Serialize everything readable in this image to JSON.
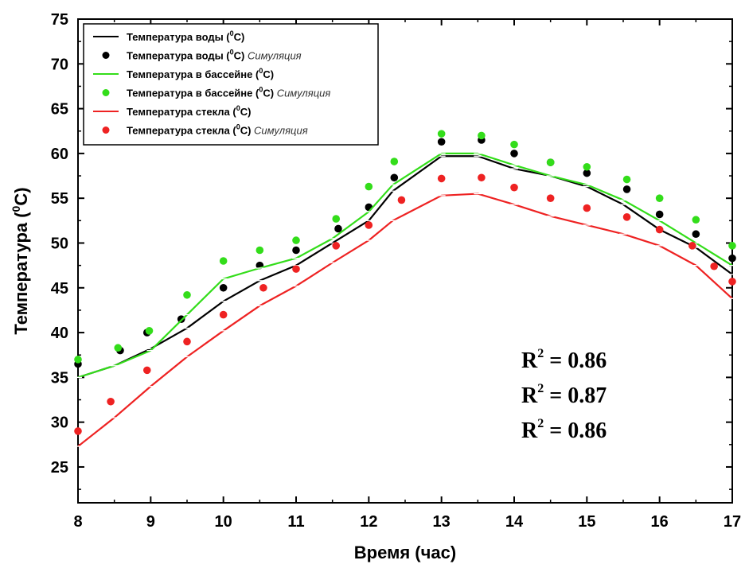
{
  "chart_data": {
    "type": "line",
    "xlabel": "Время (час)",
    "ylabel_main": "Температура (",
    "ylabel_sup": "0",
    "ylabel_end": "C)",
    "xlim": [
      8,
      17
    ],
    "ylim": [
      21,
      75
    ],
    "xticks": [
      8,
      9,
      10,
      11,
      12,
      13,
      14,
      15,
      16,
      17
    ],
    "yticks": [
      25,
      30,
      35,
      40,
      45,
      50,
      55,
      60,
      65,
      70,
      75
    ],
    "grid": false,
    "legend_position": "top-left",
    "series": [
      {
        "name": "Температура воды (0C)",
        "kind": "line",
        "color": "#000000",
        "x": [
          8,
          8.5,
          9,
          9.5,
          10,
          10.5,
          11,
          11.5,
          12,
          12.33,
          13,
          13.5,
          14,
          14.5,
          15,
          15.5,
          16,
          16.5,
          17
        ],
        "y": [
          35,
          36.3,
          38.2,
          40.5,
          43.5,
          45.8,
          47.5,
          50,
          52.5,
          55.8,
          59.7,
          59.7,
          58.3,
          57.5,
          56.3,
          54.3,
          51.5,
          49.5,
          46.5
        ]
      },
      {
        "name": "Температура воды (0C) Симуляция",
        "kind": "scatter",
        "color": "#000000",
        "x": [
          8,
          8.58,
          8.95,
          9.42,
          10,
          10.5,
          11,
          11.58,
          12,
          12.35,
          13,
          13.55,
          14,
          14.5,
          15,
          15.55,
          16,
          16.5,
          17
        ],
        "y": [
          36.5,
          38,
          40,
          41.5,
          45,
          47.5,
          49.2,
          51.6,
          54,
          57.3,
          61.3,
          61.5,
          60,
          59,
          57.8,
          56,
          53.2,
          51,
          48.3
        ]
      },
      {
        "name": "Температура в бассейне (0C)",
        "kind": "line",
        "color": "#33dd1a",
        "x": [
          8,
          8.5,
          9,
          9.5,
          10,
          10.5,
          11,
          11.5,
          12,
          12.33,
          13,
          13.5,
          14,
          14.5,
          15,
          15.5,
          16,
          16.5,
          17
        ],
        "y": [
          35,
          36.3,
          38,
          42,
          46,
          47.2,
          48.3,
          50.5,
          53.5,
          56.5,
          60,
          60,
          58.7,
          57.5,
          56.5,
          54.8,
          52.5,
          50,
          47.5
        ]
      },
      {
        "name": "Температура в бассейне (0C) Симуляция",
        "kind": "scatter",
        "color": "#33dd1a",
        "x": [
          8,
          8.55,
          8.98,
          9.5,
          10,
          10.5,
          11,
          11.55,
          12,
          12.35,
          13,
          13.55,
          14,
          14.5,
          15,
          15.55,
          16,
          16.5,
          17
        ],
        "y": [
          37,
          38.3,
          40.2,
          44.2,
          48,
          49.2,
          50.3,
          52.7,
          56.3,
          59.1,
          62.2,
          62,
          61,
          59,
          58.5,
          57.1,
          55,
          52.6,
          49.7
        ]
      },
      {
        "name": "Температура стекла (0C)",
        "kind": "line",
        "color": "#ee2222",
        "x": [
          8,
          8.5,
          9,
          9.5,
          10,
          10.5,
          11,
          11.5,
          12,
          12.33,
          13,
          13.5,
          14,
          14.5,
          15,
          15.5,
          16,
          16.5,
          17
        ],
        "y": [
          27.3,
          30.5,
          34,
          37.3,
          40.2,
          43,
          45.2,
          47.8,
          50.3,
          52.5,
          55.3,
          55.5,
          54.3,
          53,
          52,
          51,
          49.7,
          47.5,
          43.8
        ]
      },
      {
        "name": "Температура стекла (0C) Симуляция",
        "kind": "scatter",
        "color": "#ee2222",
        "x": [
          8,
          8.45,
          8.95,
          9.5,
          10,
          10.55,
          11,
          11.55,
          12,
          12.45,
          13,
          13.55,
          14,
          14.5,
          15,
          15.55,
          16,
          16.45,
          16.75,
          17
        ],
        "y": [
          29,
          32.3,
          35.8,
          39,
          42,
          45,
          47.1,
          49.7,
          52,
          54.8,
          57.2,
          57.3,
          56.2,
          55,
          53.9,
          52.9,
          51.5,
          49.7,
          47.4,
          45.7
        ]
      }
    ],
    "legend": [
      {
        "kind": "line",
        "color": "#000000",
        "text": "Температура воды (",
        "sup": "0",
        "end": "C)",
        "sim": ""
      },
      {
        "kind": "dot",
        "color": "#000000",
        "text": "Температура воды (",
        "sup": "0",
        "end": "C) ",
        "sim": "Симуляция"
      },
      {
        "kind": "line",
        "color": "#33dd1a",
        "text": "Температура в бассейне (",
        "sup": "0",
        "end": "C)",
        "sim": ""
      },
      {
        "kind": "dot",
        "color": "#33dd1a",
        "text": "Температура в бассейне (",
        "sup": "0",
        "end": "C) ",
        "sim": "Симуляция"
      },
      {
        "kind": "line",
        "color": "#ee2222",
        "text": "Температура стекла (",
        "sup": "0",
        "end": "C)",
        "sim": ""
      },
      {
        "kind": "dot",
        "color": "#ee2222",
        "text": "Температура стекла (",
        "sup": "0",
        "end": "C) ",
        "sim": "Симуляция"
      }
    ],
    "annotations": [
      {
        "base": "R",
        "sup": "2",
        "rest": " = 0.86"
      },
      {
        "base": "R",
        "sup": "2",
        "rest": " = 0.87"
      },
      {
        "base": "R",
        "sup": "2",
        "rest": " = 0.86"
      }
    ]
  }
}
